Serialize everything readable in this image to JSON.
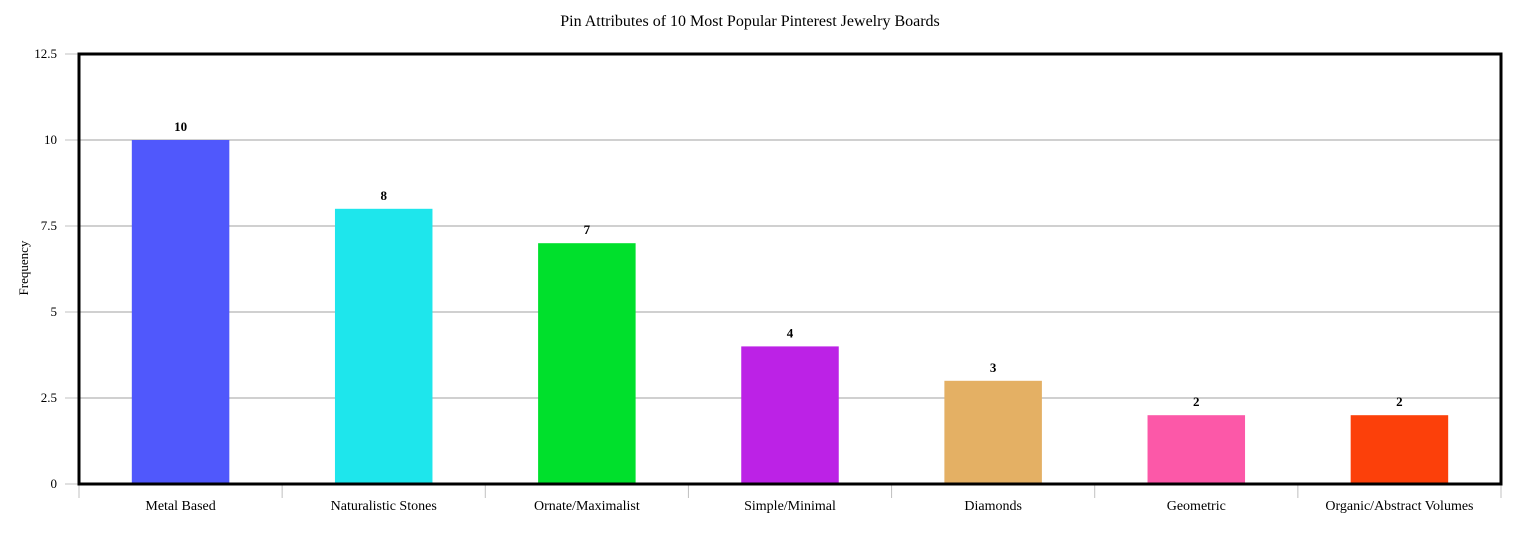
{
  "chart_data": {
    "type": "bar",
    "title": "Pin Attributes of 10 Most Popular Pinterest Jewelry Boards",
    "xlabel": "",
    "ylabel": "Frequency",
    "categories": [
      "Metal Based",
      "Naturalistic Stones",
      "Ornate/Maximalist",
      "Simple/Minimal",
      "Diamonds",
      "Geometric",
      "Organic/Abstract Volumes"
    ],
    "values": [
      10,
      8,
      7,
      4,
      3,
      2,
      2
    ],
    "data_labels": [
      "10",
      "8",
      "7",
      "4",
      "3",
      "2",
      "2"
    ],
    "colors": [
      "#5058fc",
      "#1ee6ec",
      "#00e02c",
      "#bc22e6",
      "#e4b064",
      "#fc58a8",
      "#fc400a"
    ],
    "ylim": [
      0,
      12.5
    ],
    "yticks": [
      0,
      2.5,
      5,
      7.5,
      10,
      12.5
    ],
    "ytick_labels": [
      "0",
      "2.5",
      "5",
      "7.5",
      "10",
      "12.5"
    ],
    "grid": true,
    "legend": "none"
  }
}
